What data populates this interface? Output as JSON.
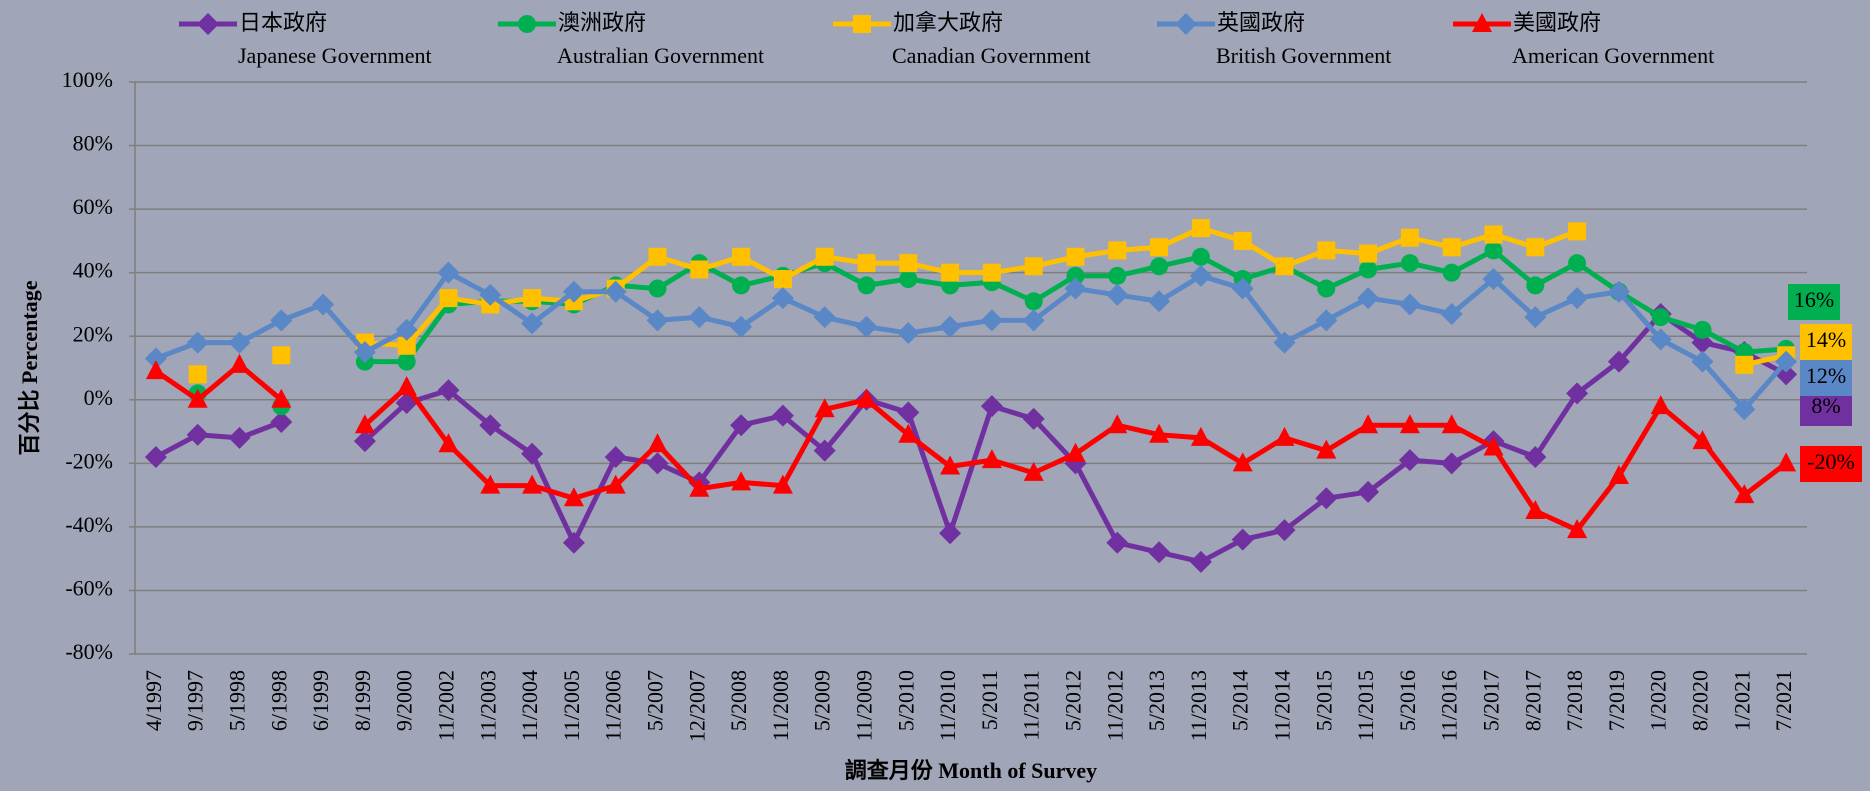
{
  "chart_data": {
    "type": "line",
    "x_label": "調查月份 Month of Survey",
    "y_label": "百分比 Percentage",
    "categories": [
      "4/1997",
      "9/1997",
      "5/1998",
      "6/1998",
      "6/1999",
      "8/1999",
      "9/2000",
      "11/2002",
      "11/2003",
      "11/2004",
      "11/2005",
      "11/2006",
      "5/2007",
      "12/2007",
      "5/2008",
      "11/2008",
      "5/2009",
      "11/2009",
      "5/2010",
      "11/2010",
      "5/2011",
      "11/2011",
      "5/2012",
      "11/2012",
      "5/2013",
      "11/2013",
      "5/2014",
      "11/2014",
      "5/2015",
      "11/2015",
      "5/2016",
      "11/2016",
      "5/2017",
      "8/2017",
      "7/2018",
      "7/2019",
      "1/2020",
      "8/2020",
      "1/2021",
      "7/2021"
    ],
    "ylim": [
      -80,
      100
    ],
    "yticks": [
      {
        "value": -80,
        "label": "-80%"
      },
      {
        "value": -60,
        "label": "-60%"
      },
      {
        "value": -40,
        "label": "-40%"
      },
      {
        "value": -20,
        "label": "-20%"
      },
      {
        "value": 0,
        "label": "0%"
      },
      {
        "value": 20,
        "label": "20%"
      },
      {
        "value": 40,
        "label": "40%"
      },
      {
        "value": 60,
        "label": "60%"
      },
      {
        "value": 80,
        "label": "80%"
      },
      {
        "value": 100,
        "label": "100%"
      }
    ],
    "grid": true,
    "series": [
      {
        "name": "日本政府",
        "name_en": "Japanese Government",
        "color": "#7030a0",
        "marker": "diamond",
        "values": [
          -18,
          -11,
          -12,
          -7,
          null,
          -13,
          -1,
          3,
          -8,
          -17,
          -45,
          -18,
          -20,
          -26,
          -8,
          -5,
          -16,
          0,
          -4,
          -42,
          -2,
          -6,
          -20,
          -45,
          -48,
          -51,
          -44,
          -41,
          -31,
          -29,
          -19,
          -20,
          -13,
          -18,
          2,
          12,
          27,
          18,
          15,
          8
        ],
        "value_labels": [
          null,
          null,
          null,
          null,
          null,
          null,
          null,
          null,
          null,
          null,
          null,
          null,
          null,
          null,
          null,
          null,
          null,
          null,
          null,
          null,
          null,
          null,
          null,
          null,
          null,
          null,
          null,
          null,
          null,
          null,
          null,
          null,
          null,
          null,
          null,
          null,
          null,
          null,
          null,
          "8%"
        ]
      },
      {
        "name": "澳洲政府",
        "name_en": "Australian Government",
        "color": "#00b050",
        "marker": "circle",
        "values": [
          null,
          2,
          null,
          -2,
          null,
          12,
          12,
          30,
          31,
          31,
          30,
          36,
          35,
          43,
          36,
          39,
          43,
          36,
          38,
          36,
          37,
          31,
          39,
          39,
          42,
          45,
          38,
          42,
          35,
          41,
          43,
          40,
          47,
          36,
          43,
          34,
          26,
          22,
          15,
          16
        ],
        "value_labels": [
          null,
          null,
          null,
          null,
          null,
          null,
          null,
          null,
          null,
          null,
          null,
          null,
          null,
          null,
          null,
          null,
          null,
          null,
          null,
          null,
          null,
          null,
          null,
          null,
          null,
          null,
          null,
          null,
          null,
          null,
          null,
          null,
          null,
          null,
          null,
          null,
          null,
          null,
          null,
          "16%"
        ]
      },
      {
        "name": "加拿大政府",
        "name_en": "Canadian Government",
        "color": "#ffc000",
        "marker": "square",
        "values": [
          null,
          8,
          null,
          14,
          null,
          18,
          17,
          32,
          30,
          32,
          31,
          35,
          45,
          41,
          45,
          38,
          45,
          43,
          43,
          40,
          40,
          42,
          45,
          47,
          48,
          54,
          50,
          42,
          47,
          46,
          51,
          48,
          52,
          48,
          53,
          null,
          null,
          null,
          11,
          14
        ],
        "value_labels": [
          null,
          null,
          null,
          null,
          null,
          null,
          null,
          null,
          null,
          null,
          null,
          null,
          null,
          null,
          null,
          null,
          null,
          null,
          null,
          null,
          null,
          null,
          null,
          null,
          null,
          null,
          null,
          null,
          null,
          null,
          null,
          null,
          null,
          null,
          null,
          null,
          null,
          null,
          null,
          "14%"
        ]
      },
      {
        "name": "英國政府",
        "name_en": "British Government",
        "color": "#5a87c6",
        "marker": "diamond",
        "values": [
          13,
          18,
          18,
          25,
          30,
          15,
          22,
          40,
          33,
          24,
          34,
          34,
          25,
          26,
          23,
          32,
          26,
          23,
          21,
          23,
          25,
          25,
          35,
          33,
          31,
          39,
          35,
          18,
          25,
          32,
          30,
          27,
          38,
          26,
          32,
          34,
          19,
          12,
          -3,
          12
        ],
        "value_labels": [
          null,
          null,
          null,
          null,
          null,
          null,
          null,
          null,
          null,
          null,
          null,
          null,
          null,
          null,
          null,
          null,
          null,
          null,
          null,
          null,
          null,
          null,
          null,
          null,
          null,
          null,
          null,
          null,
          null,
          null,
          null,
          null,
          null,
          null,
          null,
          null,
          null,
          null,
          null,
          "12%"
        ]
      },
      {
        "name": "美國政府",
        "name_en": "American Government",
        "color": "#ff0000",
        "marker": "triangle",
        "values": [
          9,
          0,
          11,
          0,
          null,
          -8,
          4,
          -14,
          -27,
          -27,
          -31,
          -27,
          -14,
          -28,
          -26,
          -27,
          -3,
          0,
          -11,
          -21,
          -19,
          -23,
          -17,
          -8,
          -11,
          -12,
          -20,
          -12,
          -16,
          -8,
          -8,
          -8,
          -15,
          -35,
          -41,
          -24,
          -2,
          -13,
          -30,
          -20
        ],
        "value_labels": [
          null,
          null,
          null,
          null,
          null,
          null,
          null,
          null,
          null,
          null,
          null,
          null,
          null,
          null,
          null,
          null,
          null,
          null,
          null,
          null,
          null,
          null,
          null,
          null,
          null,
          null,
          null,
          null,
          null,
          null,
          null,
          null,
          null,
          null,
          null,
          null,
          null,
          null,
          null,
          "-20%"
        ]
      }
    ]
  }
}
